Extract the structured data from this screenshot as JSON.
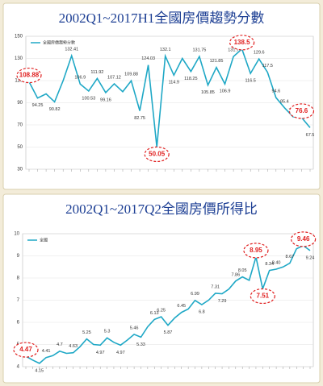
{
  "chart_data": [
    {
      "type": "line",
      "title": "2002Q1~2017H1全國房價趨勢分數",
      "series": [
        {
          "name": "全國房價趨勢分數",
          "color": "#1fa8c6",
          "values": [
            108.88,
            94.25,
            98,
            90.82,
            110,
            132.41,
            106.9,
            100.53,
            111.92,
            99.16,
            107.12,
            100,
            109.88,
            82.75,
            124.03,
            50.05,
            132.1,
            114.9,
            130,
            118.25,
            131.75,
            105.85,
            121.85,
            106.9,
            131.7,
            138.5,
            116.5,
            129.6,
            117.5,
            94.6,
            85.4,
            77.4,
            76.6,
            67.5
          ],
          "value_labels": [
            "108.88",
            "94.25",
            null,
            "90.82",
            null,
            "132.41",
            "106.9",
            "100.53",
            "111.92",
            "99.16",
            "107.12",
            null,
            "109.88",
            "82.75",
            "124.03",
            "50.05",
            "132.1",
            "114.9",
            null,
            "118.25",
            "131.75",
            "105.85",
            "121.85",
            "106.9",
            "131.7",
            "138.5",
            "116.5",
            "129.6",
            "117.5",
            "94.6",
            "85.4",
            "77.4",
            "76.6",
            "67.5"
          ]
        }
      ],
      "highlight": [
        0,
        15,
        25,
        32
      ],
      "highlight_color": "#e02020",
      "ylim": [
        30,
        150
      ],
      "yticks": [
        30,
        50,
        70,
        90,
        110,
        130,
        150
      ],
      "grid": true
    },
    {
      "type": "line",
      "title": "2002Q1~2017Q2全國房價所得比",
      "series": [
        {
          "name": "全國",
          "color": "#1fa8c6",
          "values": [
            4.47,
            4.3,
            4.15,
            4.41,
            4.5,
            4.7,
            4.6,
            4.63,
            4.9,
            5.25,
            5.0,
            4.97,
            5.3,
            5.1,
            4.97,
            5.2,
            5.46,
            5.33,
            5.8,
            6.13,
            6.25,
            5.87,
            6.2,
            6.45,
            6.6,
            6.99,
            6.8,
            7.0,
            7.31,
            7.29,
            7.5,
            7.86,
            8.05,
            7.9,
            8.95,
            7.51,
            8.34,
            8.4,
            8.5,
            8.67,
            9.32,
            9.46,
            9.24
          ],
          "value_labels": [
            "4.47",
            null,
            "4.15",
            "4.41",
            null,
            "4.7",
            null,
            "4.63",
            null,
            "5.25",
            null,
            "4.97",
            "5.3",
            null,
            "4.97",
            null,
            "5.46",
            "5.33",
            null,
            "6.13",
            "6.25",
            "5.87",
            null,
            "6.45",
            null,
            "6.99",
            "6.8",
            null,
            "7.31",
            "7.29",
            null,
            "7.86",
            "8.05",
            null,
            "8.95",
            "7.51",
            "8.34",
            "8.40",
            null,
            "8.67",
            "9.32",
            "9.46",
            "9.24"
          ]
        }
      ],
      "highlight": [
        0,
        34,
        35,
        41
      ],
      "highlight_color": "#e02020",
      "ylim": [
        4,
        10
      ],
      "yticks": [
        4,
        5,
        6,
        7,
        8,
        9,
        10
      ],
      "grid": true
    }
  ]
}
